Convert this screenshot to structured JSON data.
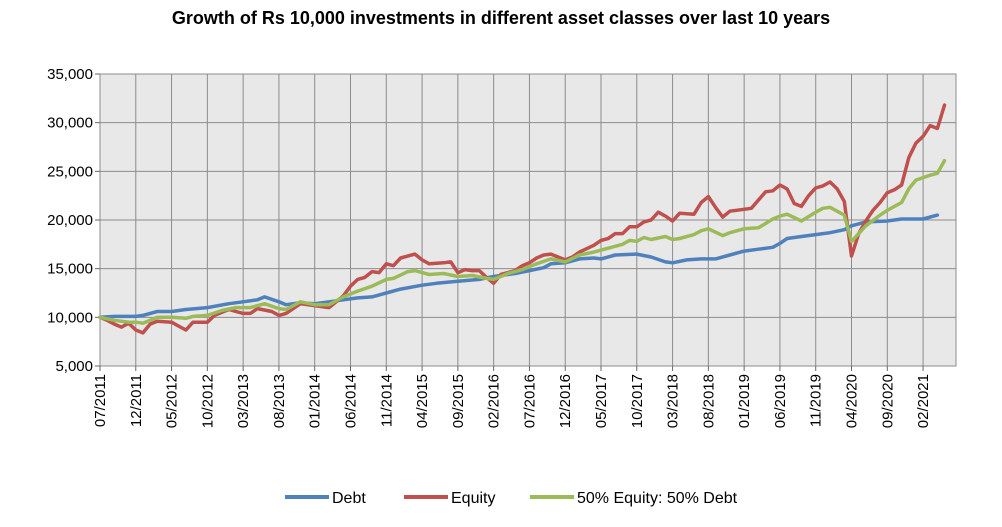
{
  "chart_data": {
    "type": "line",
    "title": "Growth of Rs 10,000 investments in different asset classes over last 10 years",
    "xlabel": "",
    "ylabel": "",
    "ylim": [
      5000,
      35000
    ],
    "yticks": [
      "5,000",
      "10,000",
      "15,000",
      "20,000",
      "25,000",
      "30,000",
      "35,000"
    ],
    "ytick_values": [
      5000,
      10000,
      15000,
      20000,
      25000,
      30000,
      35000
    ],
    "x_start": "07/2011",
    "x_end": "04/2021",
    "xticks": [
      "07/2011",
      "12/2011",
      "05/2012",
      "10/2012",
      "03/2013",
      "08/2013",
      "01/2014",
      "06/2014",
      "11/2014",
      "04/2015",
      "09/2015",
      "02/2016",
      "07/2016",
      "12/2016",
      "05/2017",
      "10/2017",
      "03/2018",
      "08/2018",
      "01/2019",
      "06/2019",
      "11/2019",
      "04/2020",
      "09/2020",
      "02/2021"
    ],
    "grid": true,
    "legend_position": "bottom",
    "colors": {
      "debt": "#4f81bd",
      "equity": "#c0504d",
      "mix": "#9bbb59",
      "plot_bg": "#e8e8e8",
      "grid": "#8c8c8c"
    },
    "series": [
      {
        "name": "Debt",
        "color": "#4f81bd",
        "points": [
          [
            "07/2011",
            10000
          ],
          [
            "09/2011",
            10100
          ],
          [
            "11/2011",
            10100
          ],
          [
            "12/2011",
            10100
          ],
          [
            "01/2012",
            10200
          ],
          [
            "03/2012",
            10600
          ],
          [
            "05/2012",
            10600
          ],
          [
            "07/2012",
            10800
          ],
          [
            "10/2012",
            11000
          ],
          [
            "01/2013",
            11400
          ],
          [
            "03/2013",
            11600
          ],
          [
            "05/2013",
            11800
          ],
          [
            "06/2013",
            12100
          ],
          [
            "08/2013",
            11600
          ],
          [
            "09/2013",
            11300
          ],
          [
            "11/2013",
            11500
          ],
          [
            "01/2014",
            11400
          ],
          [
            "03/2014",
            11600
          ],
          [
            "05/2014",
            11800
          ],
          [
            "07/2014",
            12000
          ],
          [
            "09/2014",
            12100
          ],
          [
            "11/2014",
            12500
          ],
          [
            "01/2015",
            12900
          ],
          [
            "04/2015",
            13300
          ],
          [
            "06/2015",
            13500
          ],
          [
            "09/2015",
            13700
          ],
          [
            "12/2015",
            13900
          ],
          [
            "02/2016",
            14200
          ],
          [
            "05/2016",
            14500
          ],
          [
            "07/2016",
            14800
          ],
          [
            "09/2016",
            15100
          ],
          [
            "10/2016",
            15500
          ],
          [
            "12/2016",
            15600
          ],
          [
            "02/2017",
            16000
          ],
          [
            "04/2017",
            16100
          ],
          [
            "05/2017",
            16000
          ],
          [
            "07/2017",
            16400
          ],
          [
            "10/2017",
            16500
          ],
          [
            "12/2017",
            16200
          ],
          [
            "02/2018",
            15700
          ],
          [
            "03/2018",
            15600
          ],
          [
            "05/2018",
            15900
          ],
          [
            "07/2018",
            16000
          ],
          [
            "09/2018",
            16000
          ],
          [
            "11/2018",
            16400
          ],
          [
            "01/2019",
            16800
          ],
          [
            "03/2019",
            17000
          ],
          [
            "05/2019",
            17200
          ],
          [
            "06/2019",
            17600
          ],
          [
            "07/2019",
            18100
          ],
          [
            "09/2019",
            18300
          ],
          [
            "11/2019",
            18500
          ],
          [
            "01/2020",
            18700
          ],
          [
            "03/2020",
            19000
          ],
          [
            "04/2020",
            19400
          ],
          [
            "06/2020",
            19800
          ],
          [
            "09/2020",
            19900
          ],
          [
            "11/2020",
            20100
          ],
          [
            "02/2021",
            20100
          ],
          [
            "04/2021",
            20500
          ]
        ]
      },
      {
        "name": "Equity",
        "color": "#c0504d",
        "points": [
          [
            "07/2011",
            10000
          ],
          [
            "08/2011",
            9700
          ],
          [
            "09/2011",
            9300
          ],
          [
            "10/2011",
            9000
          ],
          [
            "11/2011",
            9400
          ],
          [
            "12/2011",
            8700
          ],
          [
            "01/2012",
            8400
          ],
          [
            "02/2012",
            9300
          ],
          [
            "03/2012",
            9600
          ],
          [
            "05/2012",
            9500
          ],
          [
            "06/2012",
            9100
          ],
          [
            "07/2012",
            8700
          ],
          [
            "08/2012",
            9500
          ],
          [
            "10/2012",
            9500
          ],
          [
            "11/2012",
            10200
          ],
          [
            "01/2013",
            10800
          ],
          [
            "02/2013",
            10600
          ],
          [
            "03/2013",
            10400
          ],
          [
            "04/2013",
            10400
          ],
          [
            "05/2013",
            10900
          ],
          [
            "07/2013",
            10600
          ],
          [
            "08/2013",
            10200
          ],
          [
            "09/2013",
            10400
          ],
          [
            "11/2013",
            11400
          ],
          [
            "01/2014",
            11200
          ],
          [
            "03/2014",
            11000
          ],
          [
            "04/2014",
            11600
          ],
          [
            "05/2014",
            12200
          ],
          [
            "06/2014",
            13200
          ],
          [
            "07/2014",
            13900
          ],
          [
            "08/2014",
            14100
          ],
          [
            "09/2014",
            14700
          ],
          [
            "10/2014",
            14600
          ],
          [
            "11/2014",
            15500
          ],
          [
            "12/2014",
            15300
          ],
          [
            "01/2015",
            16100
          ],
          [
            "03/2015",
            16500
          ],
          [
            "04/2015",
            15900
          ],
          [
            "05/2015",
            15500
          ],
          [
            "07/2015",
            15600
          ],
          [
            "08/2015",
            15700
          ],
          [
            "09/2015",
            14600
          ],
          [
            "10/2015",
            14900
          ],
          [
            "11/2015",
            14800
          ],
          [
            "12/2015",
            14800
          ],
          [
            "01/2016",
            14100
          ],
          [
            "02/2016",
            13500
          ],
          [
            "03/2016",
            14400
          ],
          [
            "05/2016",
            14800
          ],
          [
            "06/2016",
            15300
          ],
          [
            "07/2016",
            15600
          ],
          [
            "08/2016",
            16100
          ],
          [
            "09/2016",
            16400
          ],
          [
            "10/2016",
            16500
          ],
          [
            "11/2016",
            16200
          ],
          [
            "12/2016",
            15900
          ],
          [
            "01/2017",
            16200
          ],
          [
            "02/2017",
            16700
          ],
          [
            "04/2017",
            17400
          ],
          [
            "05/2017",
            17900
          ],
          [
            "06/2017",
            18100
          ],
          [
            "07/2017",
            18600
          ],
          [
            "08/2017",
            18600
          ],
          [
            "09/2017",
            19300
          ],
          [
            "10/2017",
            19300
          ],
          [
            "11/2017",
            19800
          ],
          [
            "12/2017",
            20000
          ],
          [
            "01/2018",
            20800
          ],
          [
            "02/2018",
            20400
          ],
          [
            "03/2018",
            19900
          ],
          [
            "04/2018",
            20700
          ],
          [
            "06/2018",
            20600
          ],
          [
            "07/2018",
            21800
          ],
          [
            "08/2018",
            22400
          ],
          [
            "09/2018",
            21300
          ],
          [
            "10/2018",
            20300
          ],
          [
            "11/2018",
            20900
          ],
          [
            "01/2019",
            21100
          ],
          [
            "02/2019",
            21200
          ],
          [
            "04/2019",
            22900
          ],
          [
            "05/2019",
            23000
          ],
          [
            "06/2019",
            23600
          ],
          [
            "07/2019",
            23200
          ],
          [
            "08/2019",
            21700
          ],
          [
            "09/2019",
            21400
          ],
          [
            "10/2019",
            22500
          ],
          [
            "11/2019",
            23300
          ],
          [
            "12/2019",
            23500
          ],
          [
            "01/2020",
            23900
          ],
          [
            "02/2020",
            23200
          ],
          [
            "03/2020",
            21900
          ],
          [
            "04/2020",
            16300
          ],
          [
            "05/2020",
            18600
          ],
          [
            "06/2020",
            19900
          ],
          [
            "07/2020",
            21000
          ],
          [
            "08/2020",
            21800
          ],
          [
            "09/2020",
            22800
          ],
          [
            "10/2020",
            23100
          ],
          [
            "11/2020",
            23600
          ],
          [
            "12/2020",
            26400
          ],
          [
            "01/2021",
            27900
          ],
          [
            "02/2021",
            28600
          ],
          [
            "03/2021",
            29700
          ],
          [
            "04/2021",
            29400
          ],
          [
            "05/2021",
            31800
          ]
        ]
      },
      {
        "name": "50% Equity: 50% Debt",
        "color": "#9bbb59",
        "points": [
          [
            "07/2011",
            10000
          ],
          [
            "09/2011",
            9700
          ],
          [
            "11/2011",
            9500
          ],
          [
            "12/2011",
            9500
          ],
          [
            "01/2012",
            9400
          ],
          [
            "03/2012",
            10000
          ],
          [
            "05/2012",
            10000
          ],
          [
            "07/2012",
            9900
          ],
          [
            "08/2012",
            10100
          ],
          [
            "10/2012",
            10200
          ],
          [
            "12/2012",
            10700
          ],
          [
            "02/2013",
            11000
          ],
          [
            "04/2013",
            11000
          ],
          [
            "06/2013",
            11400
          ],
          [
            "08/2013",
            10900
          ],
          [
            "09/2013",
            10800
          ],
          [
            "11/2013",
            11600
          ],
          [
            "01/2014",
            11300
          ],
          [
            "03/2014",
            11300
          ],
          [
            "05/2014",
            12100
          ],
          [
            "07/2014",
            12700
          ],
          [
            "09/2014",
            13200
          ],
          [
            "11/2014",
            13900
          ],
          [
            "12/2014",
            14000
          ],
          [
            "02/2015",
            14700
          ],
          [
            "03/2015",
            14800
          ],
          [
            "05/2015",
            14400
          ],
          [
            "07/2015",
            14500
          ],
          [
            "09/2015",
            14200
          ],
          [
            "11/2015",
            14300
          ],
          [
            "01/2016",
            14000
          ],
          [
            "02/2016",
            13900
          ],
          [
            "04/2016",
            14500
          ],
          [
            "06/2016",
            14900
          ],
          [
            "08/2016",
            15500
          ],
          [
            "10/2016",
            16000
          ],
          [
            "12/2016",
            15700
          ],
          [
            "02/2017",
            16400
          ],
          [
            "04/2017",
            16700
          ],
          [
            "06/2017",
            17100
          ],
          [
            "08/2017",
            17500
          ],
          [
            "09/2017",
            17900
          ],
          [
            "10/2017",
            17800
          ],
          [
            "11/2017",
            18200
          ],
          [
            "12/2017",
            18000
          ],
          [
            "02/2018",
            18300
          ],
          [
            "03/2018",
            18000
          ],
          [
            "04/2018",
            18100
          ],
          [
            "06/2018",
            18500
          ],
          [
            "07/2018",
            18900
          ],
          [
            "08/2018",
            19100
          ],
          [
            "10/2018",
            18400
          ],
          [
            "11/2018",
            18700
          ],
          [
            "01/2019",
            19100
          ],
          [
            "03/2019",
            19200
          ],
          [
            "05/2019",
            20100
          ],
          [
            "06/2019",
            20400
          ],
          [
            "07/2019",
            20600
          ],
          [
            "09/2019",
            19900
          ],
          [
            "11/2019",
            20800
          ],
          [
            "12/2019",
            21200
          ],
          [
            "01/2020",
            21300
          ],
          [
            "03/2020",
            20500
          ],
          [
            "04/2020",
            17800
          ],
          [
            "06/2020",
            19400
          ],
          [
            "08/2020",
            20500
          ],
          [
            "09/2020",
            21000
          ],
          [
            "11/2020",
            21800
          ],
          [
            "12/2020",
            23200
          ],
          [
            "01/2021",
            24100
          ],
          [
            "03/2021",
            24600
          ],
          [
            "04/2021",
            24800
          ],
          [
            "05/2021",
            26100
          ]
        ]
      }
    ]
  }
}
